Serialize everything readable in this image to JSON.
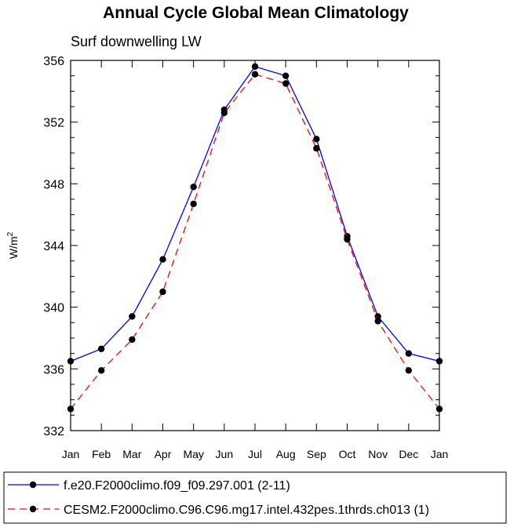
{
  "chart_data": {
    "type": "line",
    "title": "Annual Cycle Global Mean Climatology",
    "subtitle": "Surf downwelling LW",
    "xlabel": "",
    "ylabel": "W/m",
    "ylabel_superscript": "2",
    "ylim": [
      332,
      356
    ],
    "y_major_ticks": [
      332,
      336,
      340,
      344,
      348,
      352,
      356
    ],
    "y_minor_step": 1,
    "categories": [
      "Jan",
      "Feb",
      "Mar",
      "Apr",
      "May",
      "Jun",
      "Jul",
      "Aug",
      "Sep",
      "Oct",
      "Nov",
      "Dec",
      "Jan"
    ],
    "grid": false,
    "legend_position": "bottom",
    "series": [
      {
        "name": "f.e20.F2000climo.f09_f09.297.001 (2-11)",
        "color": "#0000ff",
        "line_style": "solid",
        "marker": "filled-circle",
        "values": [
          336.5,
          337.3,
          339.4,
          343.1,
          347.8,
          352.8,
          355.6,
          355.0,
          350.9,
          344.6,
          339.4,
          337.0,
          336.5
        ]
      },
      {
        "name": "CESM2.F2000climo.C96.C96.mg17.intel.432pes.1thrds.ch013 (1)",
        "color": "#ff0000",
        "line_style": "dashed",
        "marker": "filled-circle",
        "values": [
          333.4,
          335.9,
          337.9,
          341.0,
          346.7,
          352.6,
          355.1,
          354.5,
          350.3,
          344.4,
          339.1,
          335.9,
          333.4
        ]
      }
    ]
  }
}
